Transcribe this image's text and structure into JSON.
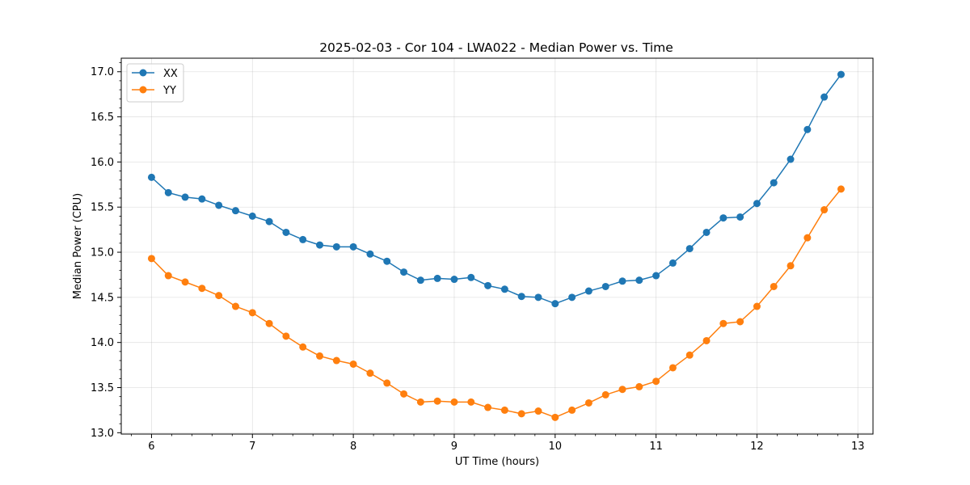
{
  "chart_data": {
    "type": "line",
    "title": "2025-02-03 - Cor 104 - LWA022 - Median Power vs. Time",
    "xlabel": "UT Time (hours)",
    "ylabel": "Median Power (CPU)",
    "xlim": [
      5.7,
      13.15
    ],
    "ylim": [
      12.985,
      17.15
    ],
    "xticks": [
      6,
      7,
      8,
      9,
      10,
      11,
      12,
      13
    ],
    "xtick_labels": [
      "6",
      "7",
      "8",
      "9",
      "10",
      "11",
      "12",
      "13"
    ],
    "yticks": [
      13.0,
      13.5,
      14.0,
      14.5,
      15.0,
      15.5,
      16.0,
      16.5,
      17.0
    ],
    "ytick_labels": [
      "13.0",
      "13.5",
      "14.0",
      "14.5",
      "15.0",
      "15.5",
      "16.0",
      "16.5",
      "17.0"
    ],
    "grid": true,
    "legend_position": "top-left",
    "x": [
      6.0,
      6.1667,
      6.3333,
      6.5,
      6.6667,
      6.8333,
      7.0,
      7.1667,
      7.3333,
      7.5,
      7.6667,
      7.8333,
      8.0,
      8.1667,
      8.3333,
      8.5,
      8.6667,
      8.8333,
      9.0,
      9.1667,
      9.3333,
      9.5,
      9.6667,
      9.8333,
      10.0,
      10.1667,
      10.3333,
      10.5,
      10.6667,
      10.8333,
      11.0,
      11.1667,
      11.3333,
      11.5,
      11.6667,
      11.8333,
      12.0,
      12.1667,
      12.3333,
      12.5,
      12.6667,
      12.8333
    ],
    "series": [
      {
        "name": "XX",
        "color": "#1f77b4",
        "values": [
          15.83,
          15.66,
          15.61,
          15.59,
          15.52,
          15.46,
          15.4,
          15.34,
          15.22,
          15.14,
          15.08,
          15.06,
          15.06,
          14.98,
          14.9,
          14.78,
          14.69,
          14.71,
          14.7,
          14.72,
          14.63,
          14.59,
          14.51,
          14.5,
          14.43,
          14.5,
          14.57,
          14.62,
          14.68,
          14.69,
          14.74,
          14.88,
          15.04,
          15.22,
          15.38,
          15.39,
          15.54,
          15.77,
          16.03,
          16.36,
          16.72,
          16.97
        ]
      },
      {
        "name": "YY",
        "color": "#ff7f0e",
        "values": [
          14.93,
          14.74,
          14.67,
          14.6,
          14.52,
          14.4,
          14.33,
          14.21,
          14.07,
          13.95,
          13.85,
          13.8,
          13.76,
          13.66,
          13.55,
          13.43,
          13.34,
          13.35,
          13.34,
          13.34,
          13.28,
          13.25,
          13.21,
          13.24,
          13.17,
          13.25,
          13.33,
          13.42,
          13.48,
          13.51,
          13.57,
          13.72,
          13.86,
          14.02,
          14.21,
          14.23,
          14.4,
          14.62,
          14.85,
          15.16,
          15.47,
          15.7
        ]
      }
    ]
  }
}
